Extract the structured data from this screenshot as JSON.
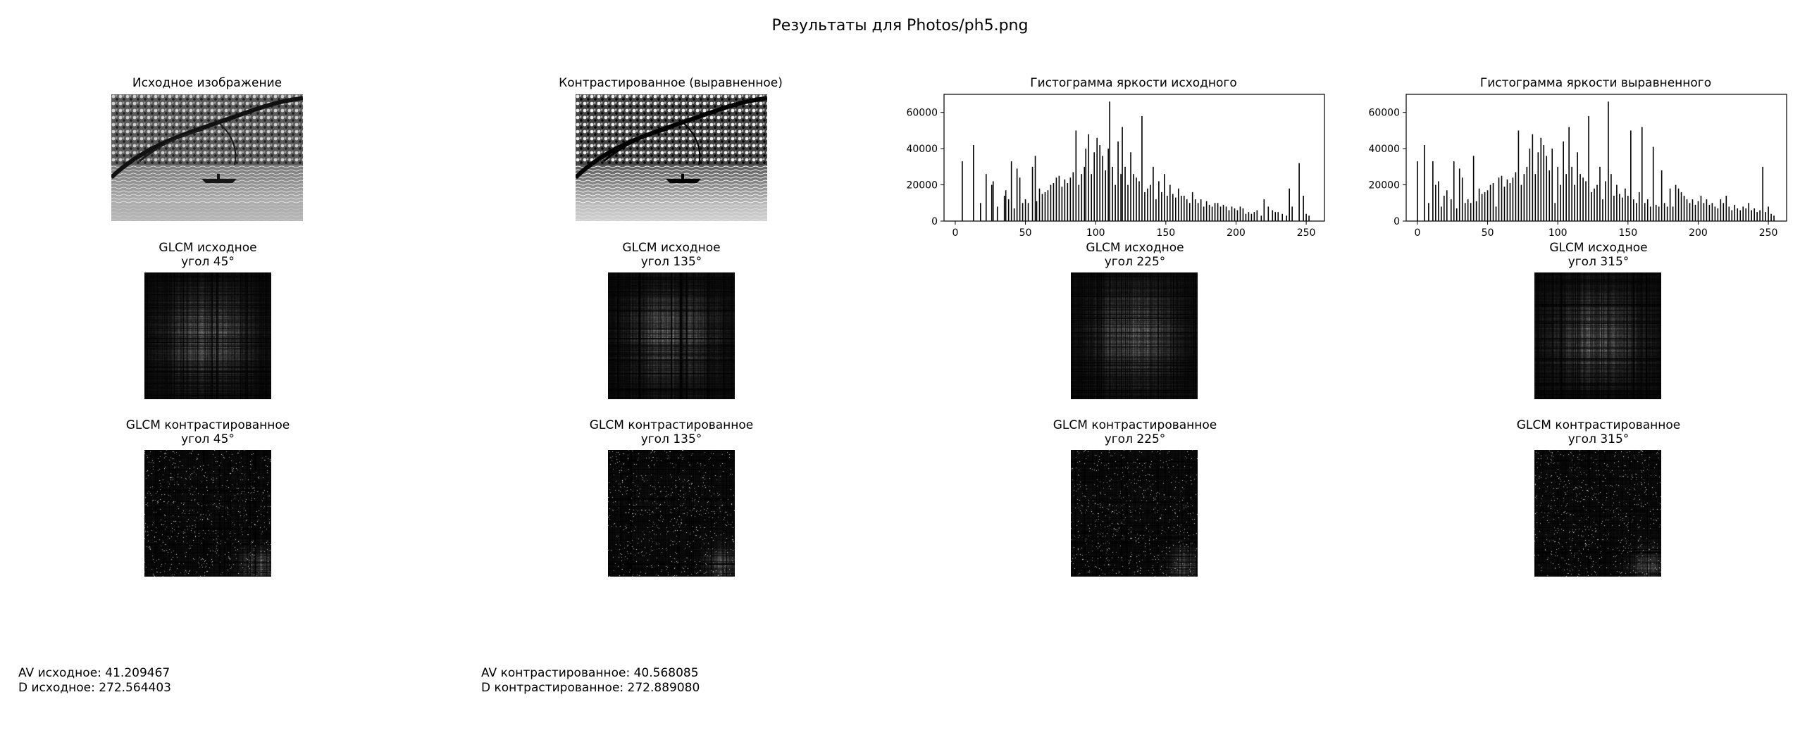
{
  "figure": {
    "suptitle": "Результаты для Photos/ph5.png"
  },
  "images": {
    "original_title": "Исходное изображение",
    "contrasted_title": "Контрастированное (выравненное)"
  },
  "histograms": {
    "original_title": "Гистограмма яркости исходного",
    "equalized_title": "Гистограмма яркости выравненного"
  },
  "glcm": {
    "original_row_label": "GLCM исходное",
    "contrasted_row_label": "GLCM контрастированное",
    "angles": [
      "угол 45°",
      "угол 135°",
      "угол 225°",
      "угол 315°"
    ]
  },
  "stats": {
    "av_original": "AV исходное: 41.209467",
    "d_original": "D исходное: 272.564403",
    "av_contrasted": "AV контрастированное: 40.568085",
    "d_contrasted": "D контрастированное: 272.889080"
  },
  "chart_data": [
    {
      "type": "bar",
      "title": "Гистограмма яркости исходного",
      "xlabel": "",
      "ylabel": "",
      "xlim": [
        -8,
        263
      ],
      "ylim": [
        0,
        70000
      ],
      "xticks": [
        0,
        50,
        100,
        150,
        200,
        250
      ],
      "yticks": [
        0,
        20000,
        40000,
        60000
      ],
      "x": [
        5,
        13,
        18,
        22,
        26,
        27,
        30,
        35,
        36,
        38,
        40,
        42,
        44,
        46,
        48,
        50,
        52,
        55,
        57,
        58,
        60,
        62,
        64,
        66,
        68,
        70,
        72,
        74,
        76,
        78,
        80,
        82,
        84,
        86,
        88,
        90,
        92,
        93,
        95,
        97,
        99,
        101,
        103,
        105,
        107,
        109,
        110,
        112,
        114,
        116,
        118,
        119,
        121,
        123,
        125,
        127,
        129,
        131,
        133,
        135,
        137,
        139,
        141,
        143,
        145,
        147,
        149,
        151,
        153,
        155,
        157,
        159,
        161,
        163,
        165,
        167,
        169,
        171,
        173,
        175,
        177,
        179,
        181,
        183,
        185,
        187,
        189,
        191,
        193,
        195,
        197,
        199,
        201,
        203,
        205,
        207,
        209,
        211,
        213,
        215,
        218,
        220,
        223,
        226,
        228,
        230,
        233,
        236,
        238,
        240,
        245,
        248,
        250,
        252
      ],
      "values": [
        33000,
        42000,
        10000,
        26000,
        20000,
        22000,
        8000,
        14000,
        17000,
        12000,
        33000,
        7000,
        29000,
        24000,
        10000,
        12000,
        10000,
        30000,
        36000,
        11000,
        18000,
        15000,
        16000,
        17000,
        20000,
        21000,
        24000,
        25000,
        19000,
        23000,
        21000,
        24000,
        27000,
        50000,
        20000,
        26000,
        30000,
        40000,
        48000,
        26000,
        38000,
        46000,
        42000,
        36000,
        28000,
        40000,
        66000,
        30000,
        20000,
        44000,
        26000,
        52000,
        30000,
        20000,
        38000,
        26000,
        24000,
        22000,
        58000,
        16000,
        18000,
        20000,
        30000,
        12000,
        22000,
        16000,
        26000,
        14000,
        20000,
        15000,
        13000,
        18000,
        14000,
        14000,
        12000,
        10000,
        16000,
        12000,
        10000,
        12000,
        8000,
        11000,
        9000,
        8000,
        10000,
        10000,
        8000,
        9000,
        8000,
        6000,
        8000,
        7000,
        6000,
        8000,
        7000,
        4000,
        5000,
        4000,
        5000,
        6000,
        3000,
        12000,
        8000,
        6000,
        5000,
        5000,
        4000,
        3000,
        18000,
        8000,
        32000,
        14000,
        4000,
        3000
      ]
    },
    {
      "type": "bar",
      "title": "Гистограмма яркости выравненного",
      "xlabel": "",
      "ylabel": "",
      "xlim": [
        -8,
        263
      ],
      "ylim": [
        0,
        70000
      ],
      "xticks": [
        0,
        50,
        100,
        150,
        200,
        250
      ],
      "yticks": [
        0,
        20000,
        40000,
        60000
      ],
      "x": [
        0,
        5,
        8,
        11,
        13,
        15,
        17,
        19,
        21,
        24,
        26,
        28,
        30,
        32,
        34,
        36,
        38,
        40,
        42,
        44,
        46,
        48,
        50,
        52,
        54,
        56,
        58,
        60,
        62,
        64,
        66,
        68,
        70,
        72,
        74,
        76,
        78,
        80,
        82,
        84,
        86,
        88,
        90,
        92,
        94,
        96,
        98,
        100,
        102,
        104,
        106,
        108,
        110,
        112,
        114,
        116,
        118,
        120,
        122,
        124,
        126,
        128,
        130,
        132,
        134,
        136,
        138,
        140,
        142,
        144,
        146,
        148,
        150,
        152,
        154,
        156,
        158,
        160,
        162,
        164,
        166,
        168,
        170,
        172,
        174,
        176,
        178,
        180,
        182,
        184,
        186,
        188,
        190,
        192,
        194,
        196,
        198,
        200,
        202,
        204,
        206,
        208,
        210,
        212,
        214,
        216,
        218,
        220,
        222,
        224,
        226,
        228,
        230,
        232,
        234,
        236,
        238,
        240,
        242,
        244,
        246,
        248,
        250,
        252,
        254
      ],
      "values": [
        33000,
        42000,
        10000,
        33000,
        20000,
        22000,
        8000,
        14000,
        17000,
        12000,
        33000,
        7000,
        29000,
        24000,
        10000,
        12000,
        10000,
        36000,
        11000,
        18000,
        15000,
        16000,
        17000,
        20000,
        21000,
        8000,
        24000,
        25000,
        19000,
        23000,
        21000,
        24000,
        27000,
        50000,
        20000,
        26000,
        30000,
        40000,
        48000,
        26000,
        38000,
        46000,
        42000,
        36000,
        28000,
        40000,
        10000,
        30000,
        20000,
        44000,
        26000,
        52000,
        30000,
        20000,
        38000,
        26000,
        24000,
        22000,
        58000,
        16000,
        18000,
        20000,
        30000,
        12000,
        22000,
        66000,
        26000,
        14000,
        20000,
        15000,
        13000,
        18000,
        14000,
        50000,
        12000,
        10000,
        16000,
        52000,
        10000,
        12000,
        8000,
        41000,
        9000,
        8000,
        28000,
        10000,
        8000,
        18000,
        8000,
        20000,
        18000,
        16000,
        14000,
        12000,
        10000,
        12000,
        9000,
        11000,
        14000,
        10000,
        12000,
        9000,
        10000,
        8000,
        7000,
        12000,
        10000,
        14000,
        8000,
        6000,
        9000,
        7000,
        6000,
        8000,
        7000,
        10000,
        6000,
        7000,
        5000,
        6000,
        30000,
        5000,
        8000,
        4000,
        3000
      ]
    }
  ]
}
